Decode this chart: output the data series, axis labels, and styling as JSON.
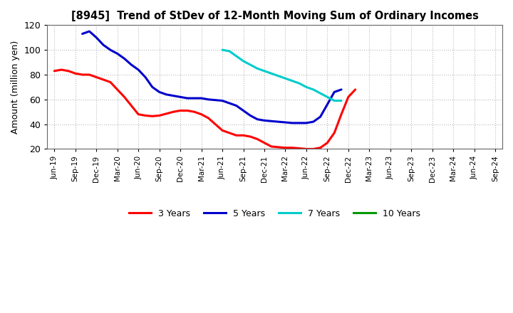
{
  "title": "[8945]  Trend of StDev of 12-Month Moving Sum of Ordinary Incomes",
  "ylabel": "Amount (million yen)",
  "ylim": [
    20,
    120
  ],
  "yticks": [
    20,
    40,
    60,
    80,
    100,
    120
  ],
  "background_color": "#ffffff",
  "grid_color": "#bbbbbb",
  "series": {
    "3 Years": {
      "color": "#ff0000",
      "y": [
        83,
        84,
        83,
        81,
        80,
        80,
        78,
        76,
        74,
        68,
        62,
        55,
        48,
        47,
        46.5,
        47,
        48.5,
        50,
        51,
        51,
        50,
        48,
        45,
        40,
        35,
        33,
        31,
        31,
        30,
        28,
        25,
        22,
        21.5,
        21,
        21,
        20.5,
        20,
        20,
        21,
        25,
        33,
        48,
        62,
        68,
        null,
        null,
        null,
        null,
        null,
        null,
        null,
        null,
        null,
        null,
        null,
        null,
        null,
        null,
        null,
        null,
        null,
        null,
        null
      ]
    },
    "5 Years": {
      "color": "#0000cc",
      "y": [
        null,
        null,
        null,
        null,
        113,
        115,
        110,
        104,
        100,
        97,
        93,
        88,
        84,
        78,
        70,
        66,
        64,
        63,
        62,
        61,
        61,
        61,
        60,
        59.5,
        59,
        57,
        55,
        51,
        47,
        44,
        43,
        42.5,
        42,
        41.5,
        41,
        41,
        41,
        42,
        46,
        56,
        66,
        68,
        null,
        null,
        null,
        null,
        null,
        null,
        null,
        null,
        null,
        null,
        null,
        null,
        null,
        null,
        null,
        null,
        null,
        null,
        null,
        null,
        null
      ]
    },
    "7 Years": {
      "color": "#00cccc",
      "y": [
        null,
        null,
        null,
        null,
        null,
        null,
        null,
        null,
        null,
        null,
        null,
        null,
        null,
        null,
        null,
        null,
        null,
        null,
        null,
        null,
        null,
        null,
        null,
        null,
        100,
        99,
        95,
        91,
        88,
        85,
        83,
        81,
        79,
        77,
        75,
        73,
        70,
        68,
        65,
        62,
        59,
        59,
        null,
        null,
        null,
        null,
        null,
        null,
        null,
        null,
        null,
        null,
        null,
        null,
        null,
        null,
        null,
        null,
        null,
        null,
        null,
        null,
        null
      ]
    },
    "10 Years": {
      "color": "#009900",
      "y": [
        null,
        null,
        null,
        null,
        null,
        null,
        null,
        null,
        null,
        null,
        null,
        null,
        null,
        null,
        null,
        null,
        null,
        null,
        null,
        null,
        null,
        null,
        null,
        null,
        null,
        null,
        null,
        null,
        null,
        null,
        null,
        null,
        null,
        null,
        null,
        null,
        null,
        null,
        null,
        null,
        null,
        null,
        null,
        null,
        null,
        null,
        null,
        null,
        null,
        null,
        null,
        null,
        null,
        null,
        null,
        null,
        null,
        null,
        null,
        null,
        null,
        null,
        null
      ]
    }
  },
  "xtick_labels": [
    "Jun-19",
    "Sep-19",
    "Dec-19",
    "Mar-20",
    "Jun-20",
    "Sep-20",
    "Dec-20",
    "Mar-21",
    "Jun-21",
    "Sep-21",
    "Dec-21",
    "Mar-22",
    "Jun-22",
    "Sep-22",
    "Dec-22",
    "Mar-23",
    "Jun-23",
    "Sep-23",
    "Dec-23",
    "Mar-24",
    "Jun-24",
    "Sep-24"
  ],
  "legend_labels": [
    "3 Years",
    "5 Years",
    "7 Years",
    "10 Years"
  ],
  "legend_colors": [
    "#ff0000",
    "#0000cc",
    "#00cccc",
    "#009900"
  ]
}
